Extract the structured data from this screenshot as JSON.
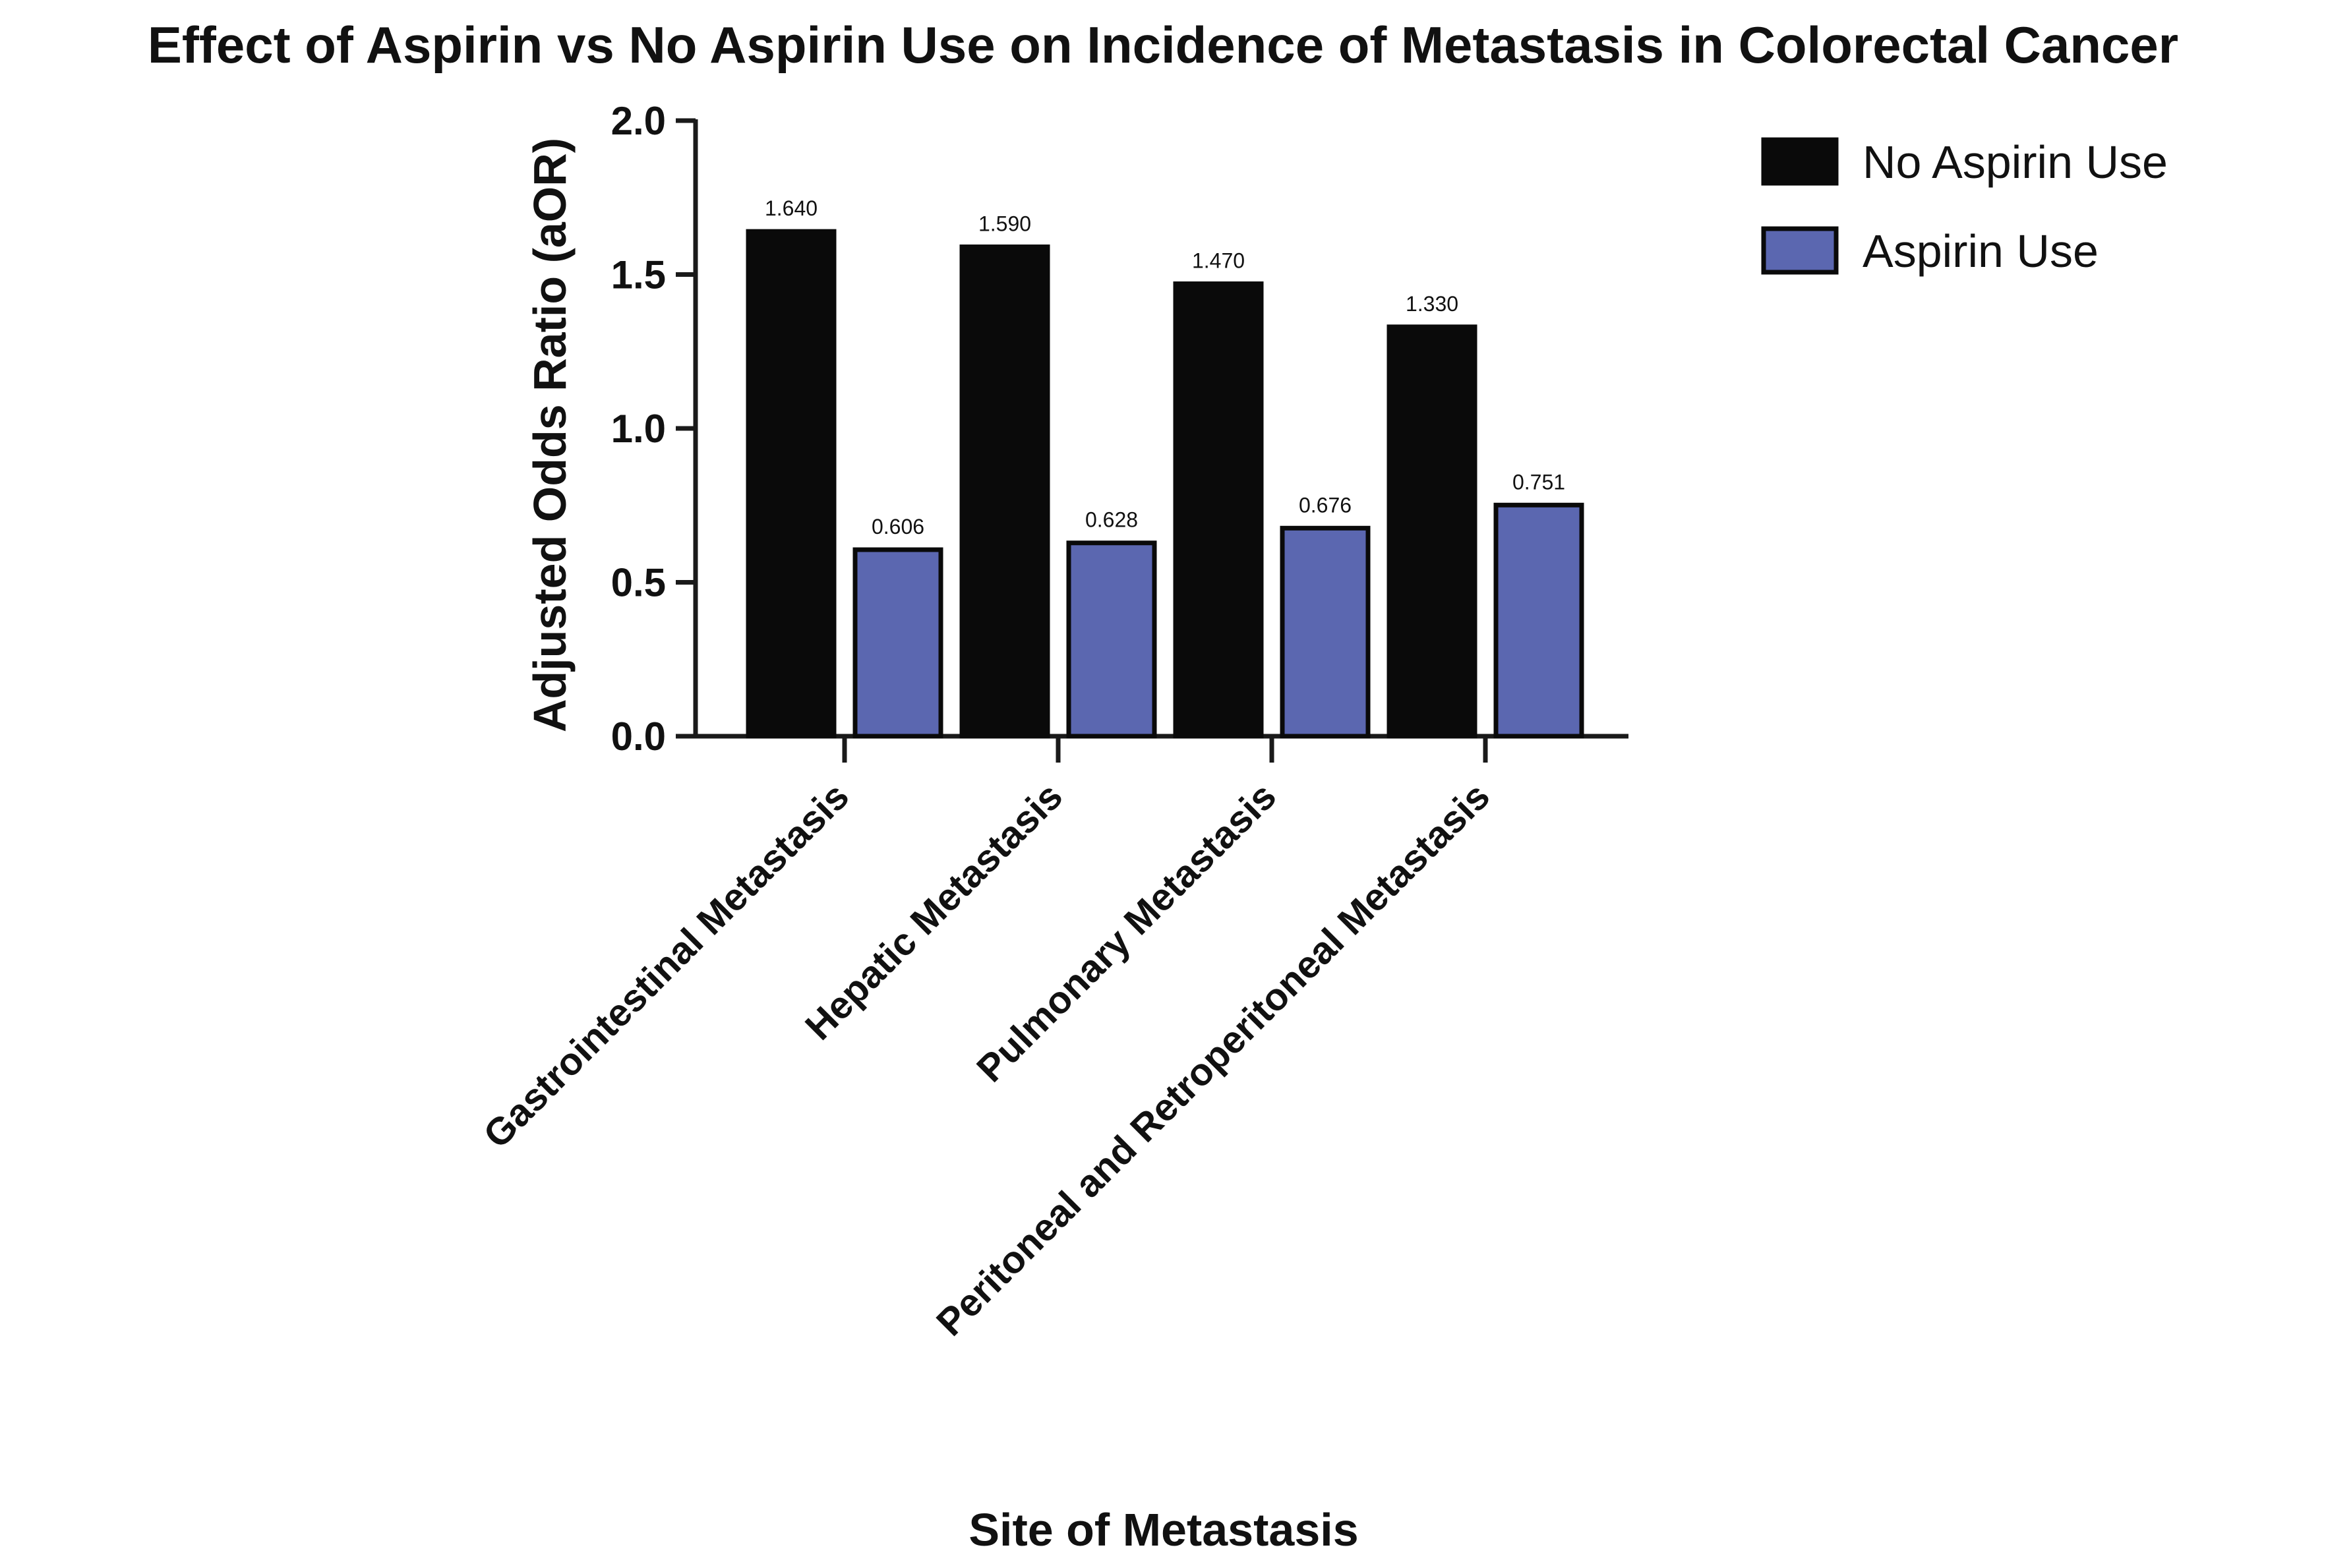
{
  "chart_data": {
    "type": "bar",
    "title": "Effect of Aspirin vs No Aspirin Use on Incidence of Metastasis in Colorectal Cancer",
    "xlabel": "Site of Metastasis",
    "ylabel": "Adjusted Odds Ratio (aOR)",
    "ylim": [
      0,
      2.0
    ],
    "yticks": [
      0.0,
      0.5,
      1.0,
      1.5,
      2.0
    ],
    "ytick_labels": [
      "0.0",
      "0.5",
      "1.0",
      "1.5",
      "2.0"
    ],
    "categories": [
      "Gastrointestinal Metastasis",
      "Hepatic Metastasis",
      "Pulmonary Metastasis",
      "Peritoneal and Retroperitoneal Metastasis"
    ],
    "series": [
      {
        "name": "No Aspirin Use",
        "color": "#0a0a0a",
        "values": [
          1.64,
          1.59,
          1.47,
          1.33
        ],
        "labels": [
          "1.640",
          "1.590",
          "1.470",
          "1.330"
        ]
      },
      {
        "name": "Aspirin Use",
        "color": "#5b67b0",
        "values": [
          0.606,
          0.628,
          0.676,
          0.751
        ],
        "labels": [
          "0.606",
          "0.628",
          "0.676",
          "0.751"
        ]
      }
    ],
    "grid": false,
    "legend": "top-right"
  }
}
